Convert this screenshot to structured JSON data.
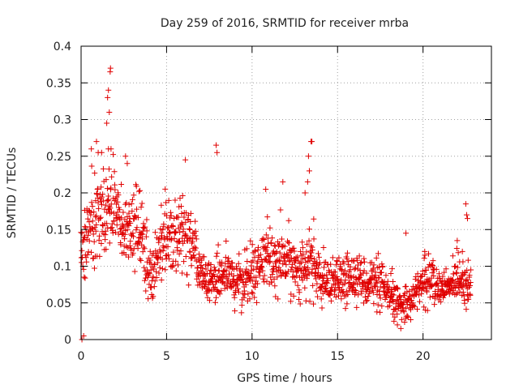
{
  "chart_data": {
    "type": "scatter",
    "title": "Day 259 of 2016, SRMTID for receiver mrba",
    "xlabel": "GPS time / hours",
    "ylabel": "SRMTID / TECUs",
    "xlim": [
      0,
      24
    ],
    "ylim": [
      0,
      0.4
    ],
    "xticks": [
      "0",
      "5",
      "10",
      "15",
      "20"
    ],
    "yticks": [
      "0",
      "0.05",
      "0.1",
      "0.15",
      "0.2",
      "0.25",
      "0.3",
      "0.35",
      "0.4"
    ],
    "grid": true,
    "marker": "plus",
    "color": "#e00000",
    "series": [
      {
        "name": "SRMTID",
        "profile_description": "approximate data envelope used to regenerate dense scatter points",
        "anchor_x": [
          0,
          0.5,
          1.0,
          1.5,
          2.0,
          2.5,
          3.0,
          3.5,
          4.0,
          4.5,
          5.0,
          5.5,
          6.0,
          6.5,
          7.0,
          7.5,
          8.0,
          8.5,
          9.0,
          9.5,
          10.0,
          10.5,
          11.0,
          11.5,
          12.0,
          12.5,
          13.0,
          13.5,
          14.0,
          14.5,
          15.0,
          15.5,
          16.0,
          16.5,
          17.0,
          17.5,
          18.0,
          18.5,
          19.0,
          19.5,
          20.0,
          20.5,
          21.0,
          21.5,
          22.0,
          22.5,
          22.8
        ],
        "anchor_mean": [
          0.12,
          0.15,
          0.16,
          0.17,
          0.18,
          0.14,
          0.15,
          0.14,
          0.09,
          0.11,
          0.14,
          0.15,
          0.15,
          0.13,
          0.09,
          0.08,
          0.09,
          0.09,
          0.08,
          0.08,
          0.09,
          0.1,
          0.11,
          0.1,
          0.11,
          0.1,
          0.09,
          0.11,
          0.08,
          0.07,
          0.08,
          0.08,
          0.09,
          0.08,
          0.08,
          0.07,
          0.06,
          0.05,
          0.05,
          0.06,
          0.08,
          0.08,
          0.07,
          0.07,
          0.09,
          0.08,
          0.08
        ],
        "anchor_spread": [
          0.05,
          0.05,
          0.06,
          0.05,
          0.05,
          0.04,
          0.05,
          0.04,
          0.04,
          0.04,
          0.05,
          0.05,
          0.05,
          0.04,
          0.03,
          0.03,
          0.04,
          0.03,
          0.03,
          0.03,
          0.03,
          0.04,
          0.04,
          0.04,
          0.04,
          0.04,
          0.03,
          0.04,
          0.03,
          0.03,
          0.03,
          0.03,
          0.03,
          0.03,
          0.03,
          0.03,
          0.03,
          0.02,
          0.02,
          0.02,
          0.03,
          0.03,
          0.02,
          0.02,
          0.03,
          0.03,
          0.03
        ],
        "point_count": 1500,
        "seed": 259,
        "x_start": 0.0,
        "x_end": 22.8,
        "highlight_points": [
          {
            "x": 0.05,
            "y": 0.0
          },
          {
            "x": 0.15,
            "y": 0.005
          },
          {
            "x": 1.55,
            "y": 0.33
          },
          {
            "x": 1.6,
            "y": 0.34
          },
          {
            "x": 1.65,
            "y": 0.31
          },
          {
            "x": 1.7,
            "y": 0.365
          },
          {
            "x": 1.72,
            "y": 0.37
          },
          {
            "x": 1.5,
            "y": 0.295
          },
          {
            "x": 1.6,
            "y": 0.26
          },
          {
            "x": 1.75,
            "y": 0.26
          },
          {
            "x": 0.6,
            "y": 0.26
          },
          {
            "x": 0.9,
            "y": 0.27
          },
          {
            "x": 1.0,
            "y": 0.255
          },
          {
            "x": 1.2,
            "y": 0.255
          },
          {
            "x": 2.6,
            "y": 0.25
          },
          {
            "x": 2.7,
            "y": 0.24
          },
          {
            "x": 6.1,
            "y": 0.245
          },
          {
            "x": 7.9,
            "y": 0.265
          },
          {
            "x": 7.95,
            "y": 0.255
          },
          {
            "x": 13.45,
            "y": 0.27
          },
          {
            "x": 13.5,
            "y": 0.27
          },
          {
            "x": 13.3,
            "y": 0.25
          },
          {
            "x": 13.35,
            "y": 0.23
          },
          {
            "x": 13.25,
            "y": 0.215
          },
          {
            "x": 13.1,
            "y": 0.2
          },
          {
            "x": 11.8,
            "y": 0.215
          },
          {
            "x": 10.8,
            "y": 0.205
          },
          {
            "x": 22.5,
            "y": 0.185
          },
          {
            "x": 22.55,
            "y": 0.17
          },
          {
            "x": 22.6,
            "y": 0.165
          },
          {
            "x": 22.0,
            "y": 0.135
          },
          {
            "x": 22.3,
            "y": 0.12
          },
          {
            "x": 18.7,
            "y": 0.015
          },
          {
            "x": 18.5,
            "y": 0.02
          },
          {
            "x": 18.3,
            "y": 0.025
          },
          {
            "x": 19.0,
            "y": 0.145
          },
          {
            "x": 20.1,
            "y": 0.12
          }
        ]
      }
    ]
  }
}
